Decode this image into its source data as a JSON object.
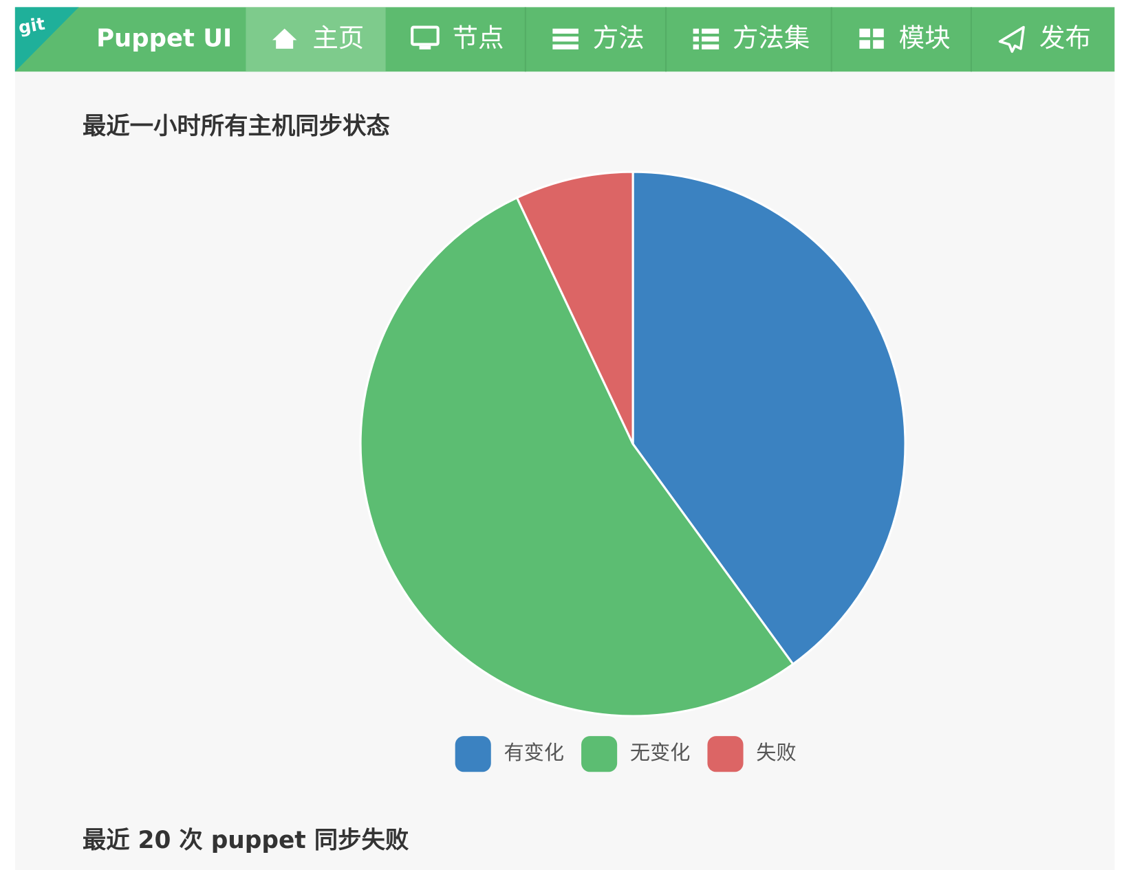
{
  "nav": {
    "logo": "git",
    "brand": "Puppet UI",
    "items": [
      "主页",
      "节点",
      "方法",
      "方法集",
      "模块",
      "发布"
    ]
  },
  "sections": [
    {
      "title": "最近一小时所有主机同步状态"
    },
    {
      "title": "最近 20 次 puppet 同步失败"
    }
  ],
  "chart_data": {
    "type": "pie",
    "categories": [
      "有变化",
      "无变化",
      "失败"
    ],
    "values": [
      40,
      53,
      7
    ],
    "colors": [
      "#3b82c1",
      "#5cbd72",
      "#dc6565"
    ],
    "legend": "bottom"
  }
}
